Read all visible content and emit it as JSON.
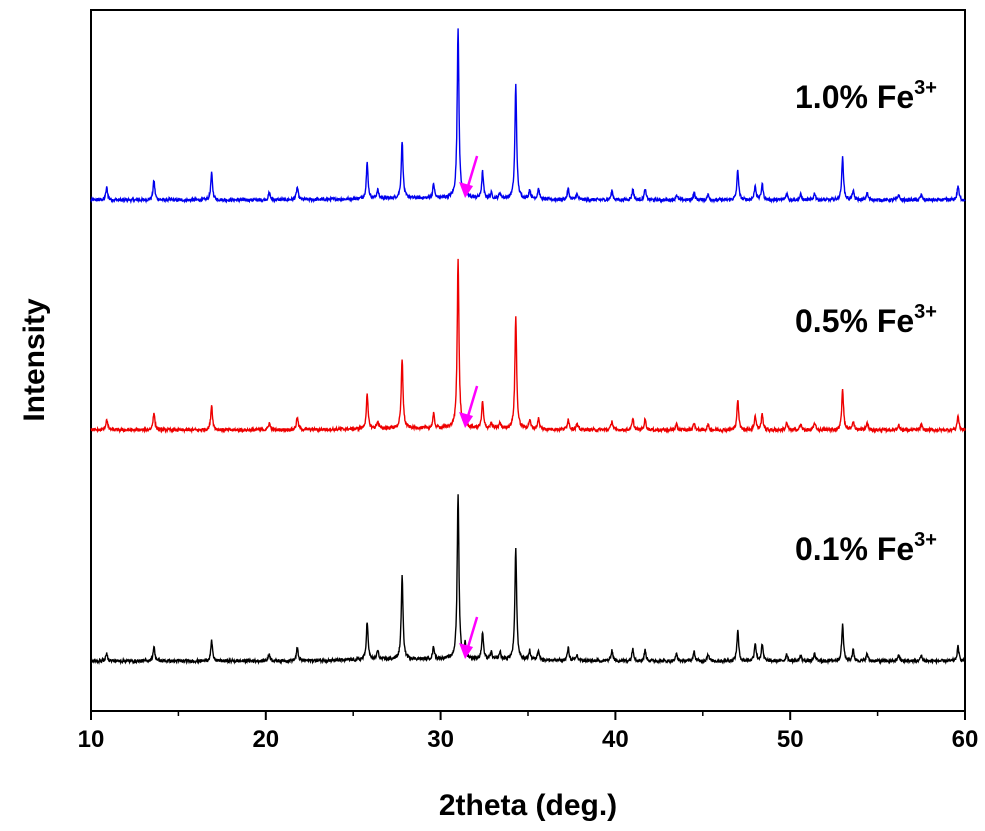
{
  "chart_data": {
    "type": "line",
    "title": "",
    "xlabel": "2theta (deg.)",
    "ylabel": "Intensity",
    "xlim": [
      10,
      60
    ],
    "xticks": [
      "10",
      "20",
      "30",
      "40",
      "50",
      "60"
    ],
    "grid": false,
    "legend": "none (inline series labels at right)",
    "arrow_color": "#ff00ff",
    "arrow_at_x": 31.4,
    "peaks_2theta": [
      10.9,
      13.6,
      16.9,
      20.2,
      21.8,
      25.8,
      26.4,
      27.8,
      29.6,
      31.0,
      31.4,
      32.4,
      32.9,
      33.4,
      34.3,
      35.1,
      35.6,
      37.3,
      37.8,
      39.8,
      41.0,
      41.7,
      43.5,
      44.5,
      45.3,
      47.0,
      48.0,
      48.4,
      49.8,
      50.6,
      51.4,
      53.0,
      53.6,
      54.4,
      56.2,
      57.5,
      59.6
    ],
    "series": [
      {
        "label_main": "1.0% Fe",
        "label_sup": "3+",
        "color": "#0000ee",
        "peak_heights": [
          0.07,
          0.11,
          0.15,
          0.04,
          0.07,
          0.2,
          0.05,
          0.32,
          0.08,
          0.96,
          0.05,
          0.15,
          0.03,
          0.03,
          0.64,
          0.05,
          0.06,
          0.06,
          0.03,
          0.05,
          0.06,
          0.06,
          0.03,
          0.04,
          0.03,
          0.17,
          0.08,
          0.09,
          0.04,
          0.03,
          0.04,
          0.24,
          0.05,
          0.04,
          0.03,
          0.03,
          0.08
        ]
      },
      {
        "label_main": "0.5% Fe",
        "label_sup": "3+",
        "color": "#ee0000",
        "peak_heights": [
          0.06,
          0.1,
          0.14,
          0.04,
          0.07,
          0.19,
          0.04,
          0.39,
          0.08,
          0.95,
          0.04,
          0.15,
          0.03,
          0.03,
          0.63,
          0.05,
          0.06,
          0.06,
          0.03,
          0.05,
          0.06,
          0.06,
          0.03,
          0.04,
          0.03,
          0.17,
          0.08,
          0.09,
          0.04,
          0.03,
          0.04,
          0.23,
          0.05,
          0.04,
          0.03,
          0.03,
          0.08
        ]
      },
      {
        "label_main": "0.1% Fe",
        "label_sup": "3+",
        "color": "#000000",
        "peak_heights": [
          0.04,
          0.08,
          0.11,
          0.04,
          0.07,
          0.21,
          0.05,
          0.46,
          0.07,
          0.92,
          0.08,
          0.15,
          0.04,
          0.04,
          0.62,
          0.05,
          0.06,
          0.07,
          0.03,
          0.06,
          0.07,
          0.06,
          0.04,
          0.05,
          0.04,
          0.17,
          0.1,
          0.09,
          0.04,
          0.03,
          0.04,
          0.2,
          0.06,
          0.04,
          0.03,
          0.03,
          0.08
        ]
      }
    ]
  }
}
